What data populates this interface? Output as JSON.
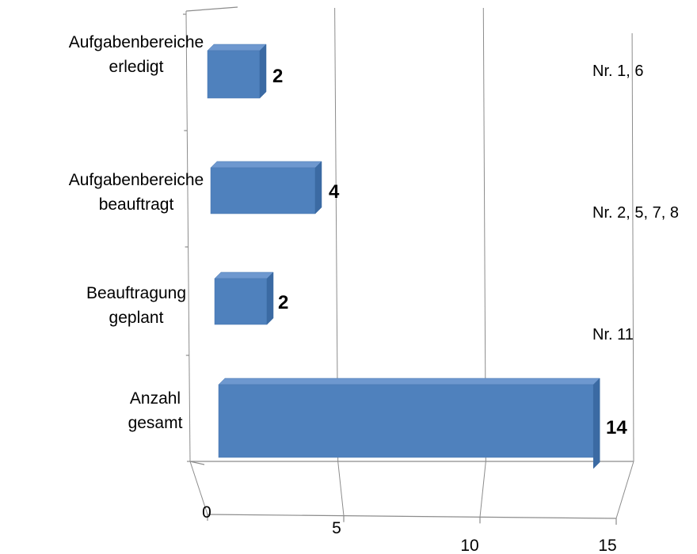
{
  "chart_data": {
    "type": "bar",
    "orientation": "horizontal",
    "style": "3d",
    "categories": [
      [
        "Aufgabenbereiche",
        "erledigt"
      ],
      [
        "Aufgabenbereiche",
        "beauftragt"
      ],
      [
        "Beauftragung",
        "geplant"
      ],
      [
        "Anzahl",
        "gesamt"
      ]
    ],
    "values": [
      2,
      4,
      2,
      14
    ],
    "data_labels": [
      "2",
      "4",
      "2",
      "14"
    ],
    "annotations": [
      "Nr. 1, 6",
      "Nr. 2, 5, 7, 8",
      "Nr. 11",
      ""
    ],
    "xticks": [
      "0",
      "5",
      "10",
      "15"
    ],
    "xlim": [
      0,
      15
    ],
    "grid": true,
    "bar_color": "#4f81bd",
    "bar_top_color": "#6e98cf",
    "bar_side_color": "#3b6aa3",
    "axis_color": "#8c8c8c"
  }
}
